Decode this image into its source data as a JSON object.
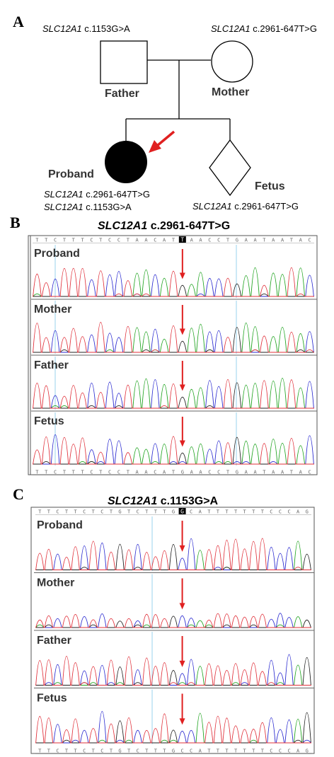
{
  "panel_a": {
    "letter": "A",
    "father_gene": "SLC12A1",
    "father_variant": " c.1153G>A",
    "mother_gene": "SLC12A1",
    "mother_variant": " c.2961-647T>G",
    "father_label": "Father",
    "mother_label": "Mother",
    "proband_label": "Proband",
    "fetus_label": "Fetus",
    "proband_var1_gene": "SLC12A1",
    "proband_var1": " c.2961-647T>G",
    "proband_var2_gene": "SLC12A1",
    "proband_var2": " c.1153G>A",
    "fetus_gene": "SLC12A1",
    "fetus_variant": " c.2961-647T>G",
    "arrow_color": "#e02020"
  },
  "panel_b": {
    "letter": "B",
    "title_gene": "SLC12A1",
    "title_variant": " c.2961-647T>G",
    "sequence": "TTCTTTCTCCTAACATGAACCTGAATAATAC",
    "highlight_index": 16,
    "highlight_letter": "T",
    "tracks": [
      "Proband",
      "Mother",
      "Father",
      "Fetus"
    ]
  },
  "panel_c": {
    "letter": "C",
    "title_gene": "SLC12A1",
    "title_variant": " c.1153G>A",
    "sequence": "TTCTTCTCTGTCTTTGCCATTTTTTTCCCAG",
    "highlight_index": 16,
    "highlight_letter": "G",
    "tracks": [
      "Proband",
      "Mother",
      "Father",
      "Fetus"
    ]
  },
  "colors": {
    "A": "#1fa31f",
    "C": "#2a2ad0",
    "G": "#202020",
    "T": "#e0303a",
    "arrow": "#e02020",
    "divider": "#7fc8e8"
  }
}
